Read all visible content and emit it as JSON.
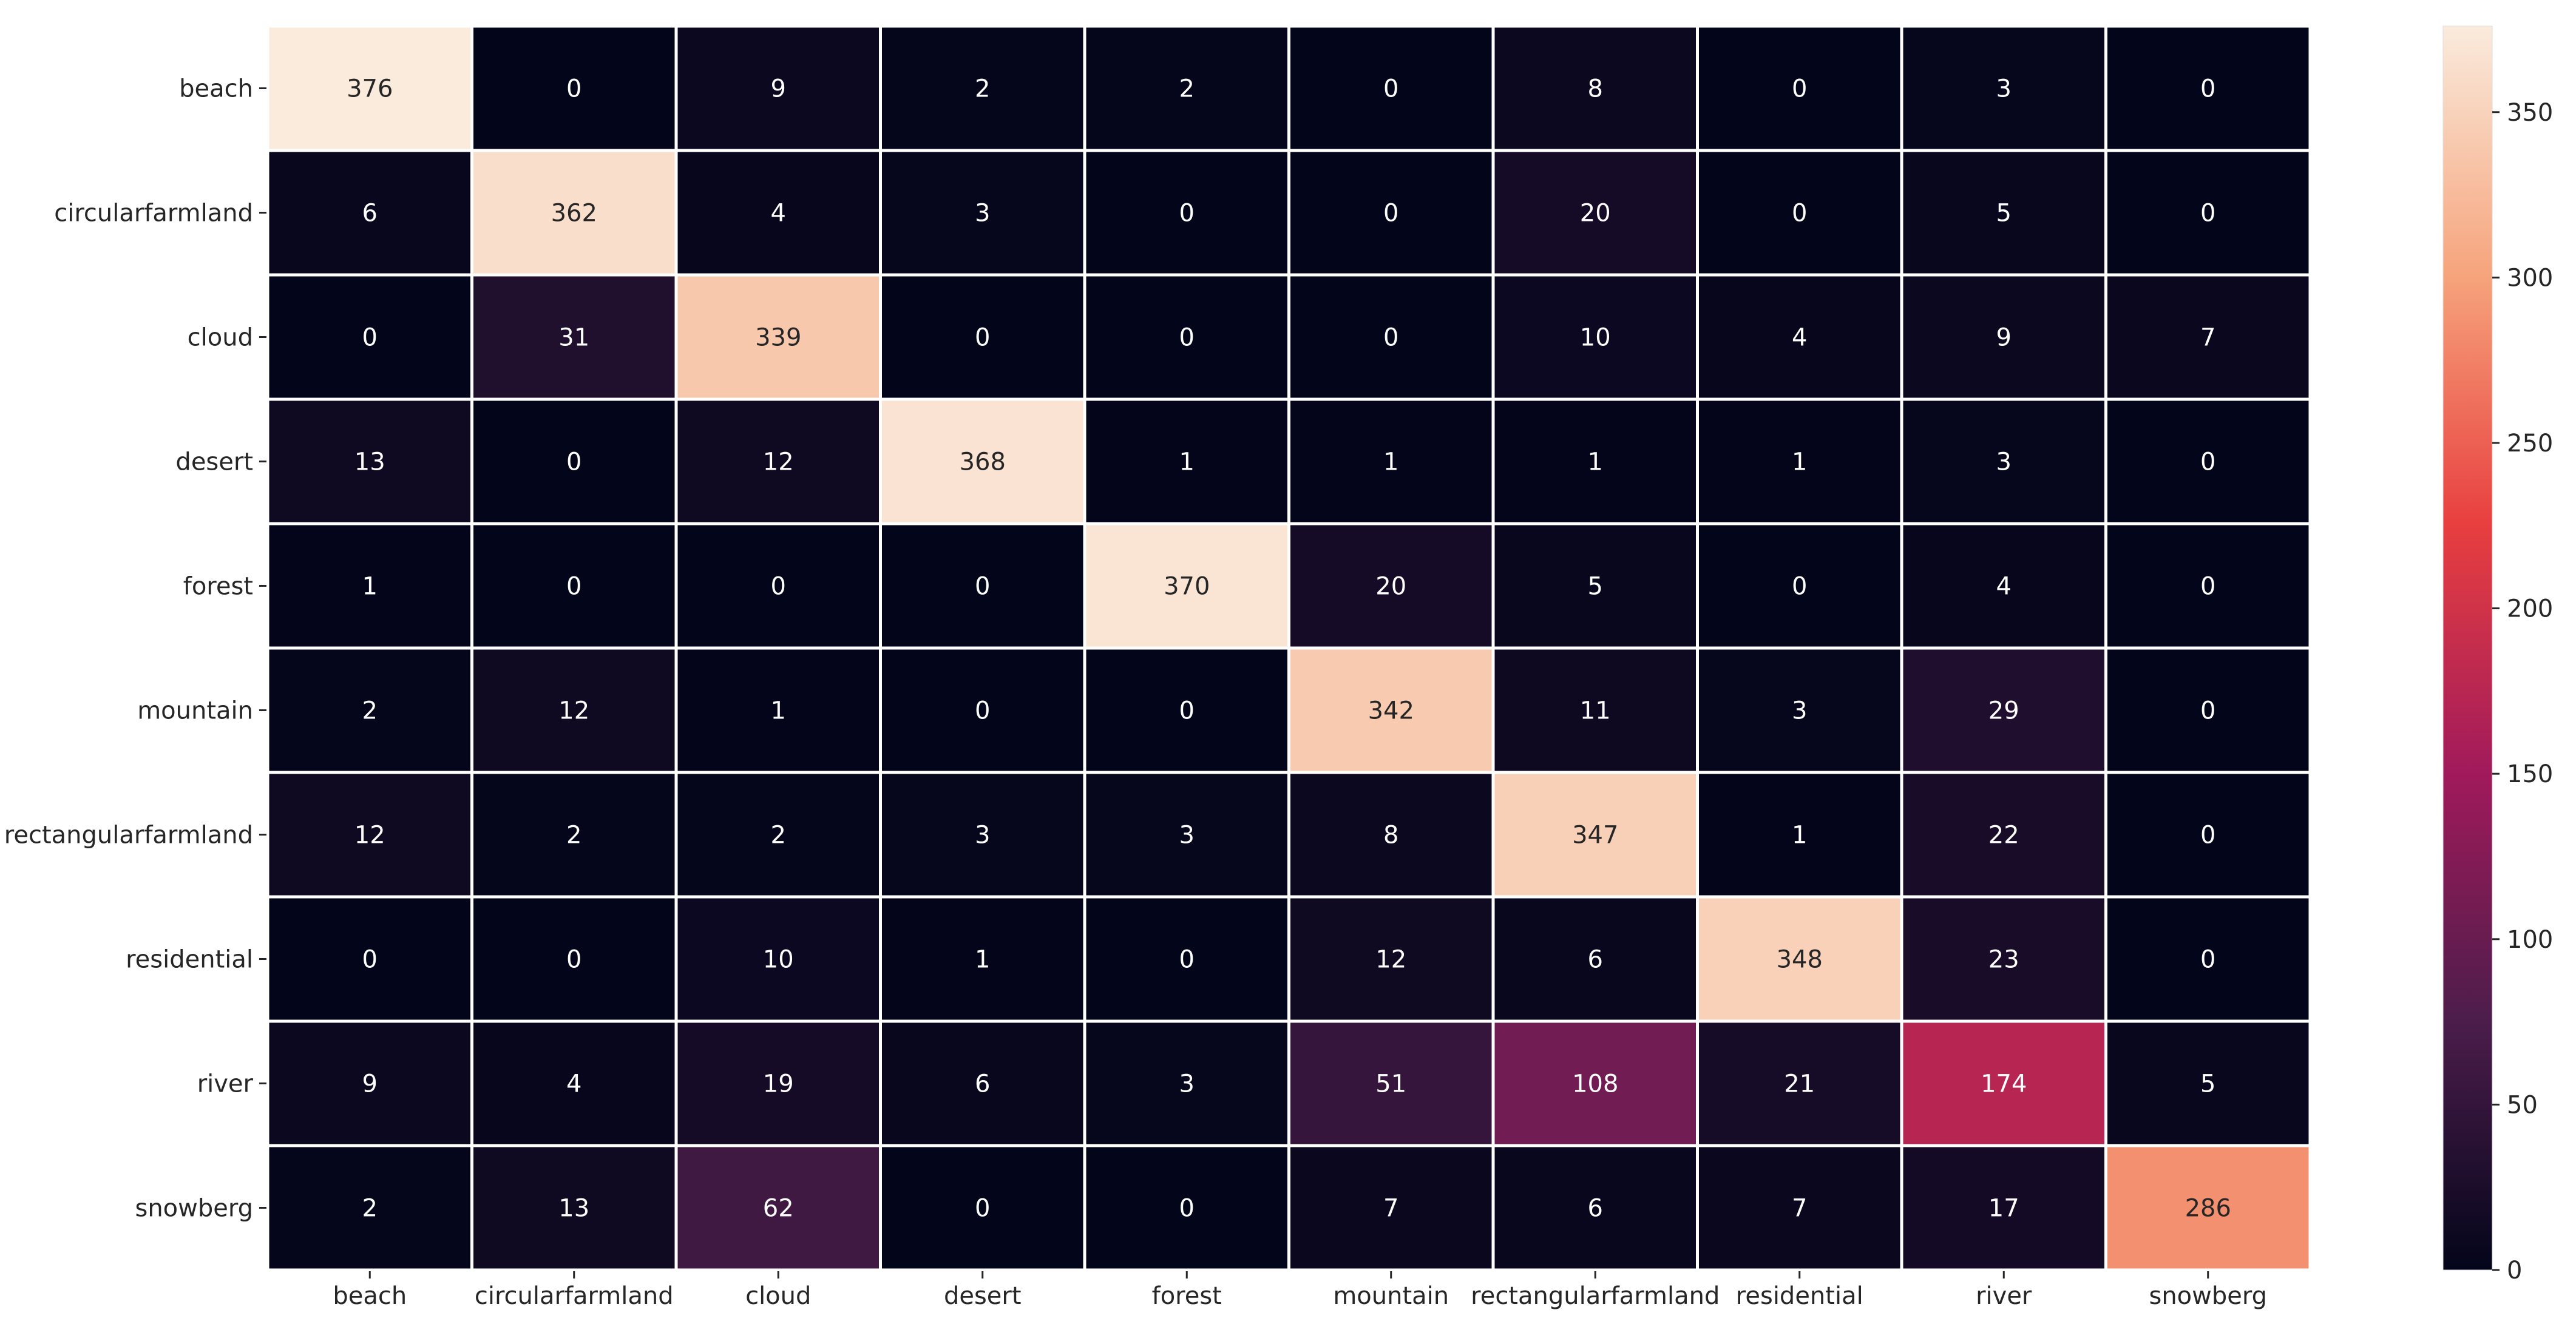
{
  "chart_data": {
    "type": "heatmap",
    "title": "",
    "xlabel": "",
    "ylabel": "",
    "x_labels": [
      "beach",
      "circularfarmland",
      "cloud",
      "desert",
      "forest",
      "mountain",
      "rectangularfarmland",
      "residential",
      "river",
      "snowberg"
    ],
    "y_labels": [
      "beach",
      "circularfarmland",
      "cloud",
      "desert",
      "forest",
      "mountain",
      "rectangularfarmland",
      "residential",
      "river",
      "snowberg"
    ],
    "values": [
      [
        376,
        0,
        9,
        2,
        2,
        0,
        8,
        0,
        3,
        0
      ],
      [
        6,
        362,
        4,
        3,
        0,
        0,
        20,
        0,
        5,
        0
      ],
      [
        0,
        31,
        339,
        0,
        0,
        0,
        10,
        4,
        9,
        7
      ],
      [
        13,
        0,
        12,
        368,
        1,
        1,
        1,
        1,
        3,
        0
      ],
      [
        1,
        0,
        0,
        0,
        370,
        20,
        5,
        0,
        4,
        0
      ],
      [
        2,
        12,
        1,
        0,
        0,
        342,
        11,
        3,
        29,
        0
      ],
      [
        12,
        2,
        2,
        3,
        3,
        8,
        347,
        1,
        22,
        0
      ],
      [
        0,
        0,
        10,
        1,
        0,
        12,
        6,
        348,
        23,
        0
      ],
      [
        9,
        4,
        19,
        6,
        3,
        51,
        108,
        21,
        174,
        5
      ],
      [
        2,
        13,
        62,
        0,
        0,
        7,
        6,
        7,
        17,
        286
      ]
    ],
    "colorbar": {
      "range": [
        0,
        376
      ],
      "ticks": [
        0,
        50,
        100,
        150,
        200,
        250,
        300,
        350
      ]
    },
    "colormap": [
      "#03051a",
      "#4c1d4b",
      "#a11a5b",
      "#e83f3f",
      "#f6a47c",
      "#faebdd"
    ],
    "grid": false,
    "legend": "colorbar-right"
  }
}
